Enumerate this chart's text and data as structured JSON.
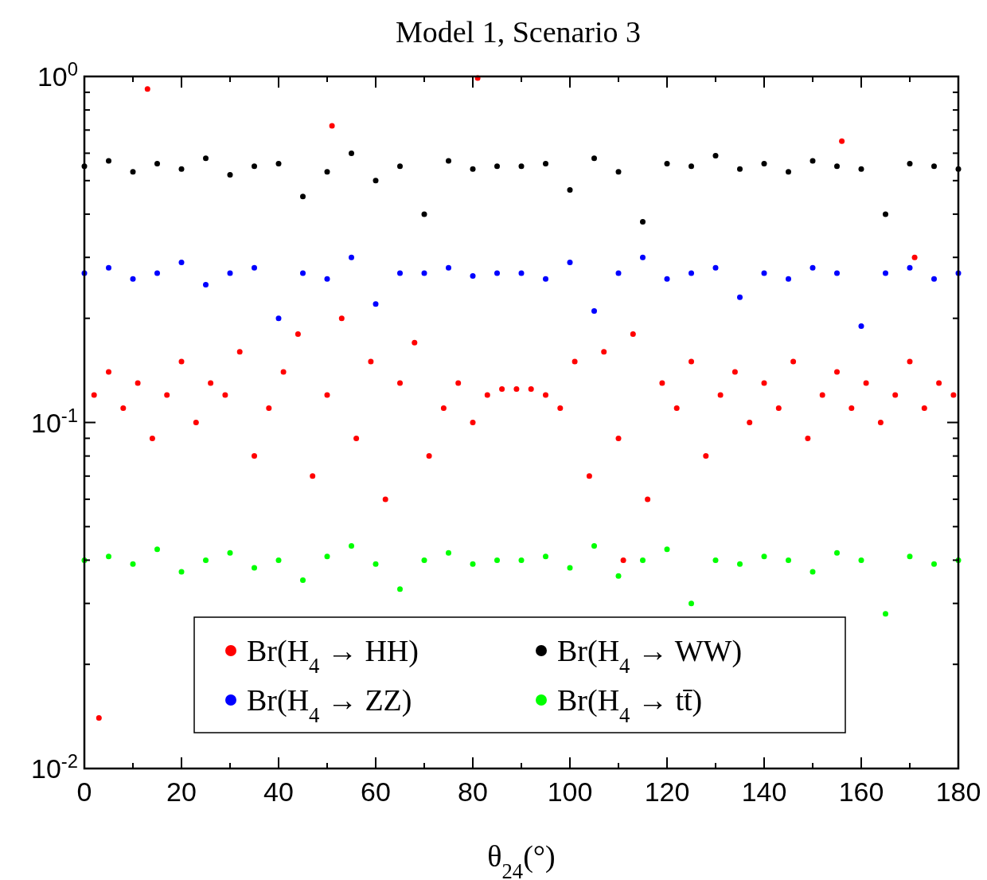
{
  "chart_data": {
    "type": "scatter",
    "title": "Model 1, Scenario 3",
    "xlabel": "θ$_{24}$(°)",
    "log": "y",
    "xlim": [
      0,
      180
    ],
    "ylim": [
      0.01,
      1
    ],
    "xticks": [
      0,
      {
        "value": 10,
        "label": null
      },
      20,
      {
        "value": 30,
        "label": null
      },
      40,
      {
        "value": 50,
        "label": null
      },
      60,
      {
        "value": 70,
        "label": null
      },
      80,
      {
        "value": 90,
        "label": null
      },
      100,
      {
        "value": 110,
        "label": null
      },
      120,
      {
        "value": 130,
        "label": null
      },
      140,
      {
        "value": 150,
        "label": null
      },
      160,
      {
        "value": 170,
        "label": null
      },
      180
    ],
    "yticks": [
      {
        "value": 0.01,
        "label": "10$^{-2}$"
      },
      {
        "value": 0.02,
        "label": null
      },
      {
        "value": 0.03,
        "label": null
      },
      {
        "value": 0.04,
        "label": null
      },
      {
        "value": 0.05,
        "label": null
      },
      {
        "value": 0.06,
        "label": null
      },
      {
        "value": 0.07,
        "label": null
      },
      {
        "value": 0.08,
        "label": null
      },
      {
        "value": 0.09,
        "label": null
      },
      {
        "value": 0.1,
        "label": "10$^{-1}$"
      },
      {
        "value": 0.2,
        "label": null
      },
      {
        "value": 0.3,
        "label": null
      },
      {
        "value": 0.4,
        "label": null
      },
      {
        "value": 0.5,
        "label": null
      },
      {
        "value": 0.6,
        "label": null
      },
      {
        "value": 0.7,
        "label": null
      },
      {
        "value": 0.8,
        "label": null
      },
      {
        "value": 0.9,
        "label": null
      },
      {
        "value": 1,
        "label": "10$^{0}$"
      }
    ],
    "marker": "circle",
    "grid": false,
    "legend": "bottom",
    "series": [
      {
        "name": "Br(H$_{4}$ → HH)",
        "color": "#ff0000",
        "x": [
          2,
          5,
          8,
          11,
          14,
          17,
          20,
          23,
          26,
          29,
          32,
          35,
          38,
          41,
          44,
          47,
          50,
          53,
          56,
          59,
          62,
          65,
          68,
          71,
          74,
          77,
          80,
          83,
          86,
          89,
          92,
          95,
          98,
          101,
          104,
          107,
          110,
          113,
          116,
          119,
          122,
          125,
          128,
          131,
          134,
          137,
          140,
          143,
          146,
          149,
          152,
          155,
          158,
          161,
          164,
          167,
          170,
          173,
          176,
          179,
          13,
          51,
          81,
          156,
          171,
          3,
          111
        ],
        "values": [
          0.12,
          0.14,
          0.11,
          0.13,
          0.09,
          0.12,
          0.15,
          0.1,
          0.13,
          0.12,
          0.16,
          0.08,
          0.11,
          0.14,
          0.18,
          0.07,
          0.12,
          0.2,
          0.09,
          0.15,
          0.06,
          0.13,
          0.17,
          0.08,
          0.11,
          0.13,
          0.1,
          0.12,
          0.125,
          0.125,
          0.125,
          0.12,
          0.11,
          0.15,
          0.07,
          0.16,
          0.09,
          0.18,
          0.06,
          0.13,
          0.11,
          0.15,
          0.08,
          0.12,
          0.14,
          0.1,
          0.13,
          0.11,
          0.15,
          0.09,
          0.12,
          0.14,
          0.11,
          0.13,
          0.1,
          0.12,
          0.15,
          0.11,
          0.13,
          0.12,
          0.92,
          0.72,
          0.99,
          0.65,
          0.3,
          0.014,
          0.04
        ]
      },
      {
        "name": "Br(H$_{4}$ → WW)",
        "color": "#000000",
        "x": [
          0,
          5,
          10,
          15,
          20,
          25,
          30,
          35,
          40,
          45,
          50,
          55,
          60,
          65,
          70,
          75,
          80,
          85,
          90,
          95,
          100,
          105,
          110,
          115,
          120,
          125,
          130,
          135,
          140,
          145,
          150,
          155,
          160,
          165,
          170,
          175,
          180
        ],
        "values": [
          0.55,
          0.57,
          0.53,
          0.56,
          0.54,
          0.58,
          0.52,
          0.55,
          0.56,
          0.45,
          0.53,
          0.6,
          0.5,
          0.55,
          0.4,
          0.57,
          0.54,
          0.55,
          0.55,
          0.56,
          0.47,
          0.58,
          0.53,
          0.38,
          0.56,
          0.55,
          0.59,
          0.54,
          0.56,
          0.53,
          0.57,
          0.55,
          0.54,
          0.4,
          0.56,
          0.55,
          0.54
        ]
      },
      {
        "name": "Br(H$_{4}$ → ZZ)",
        "color": "#0000ff",
        "x": [
          0,
          5,
          10,
          15,
          20,
          25,
          30,
          35,
          40,
          45,
          50,
          55,
          60,
          65,
          70,
          75,
          80,
          85,
          90,
          95,
          100,
          105,
          110,
          115,
          120,
          125,
          130,
          135,
          140,
          145,
          150,
          155,
          160,
          165,
          170,
          175,
          180
        ],
        "values": [
          0.27,
          0.28,
          0.26,
          0.27,
          0.29,
          0.25,
          0.27,
          0.28,
          0.2,
          0.27,
          0.26,
          0.3,
          0.22,
          0.27,
          0.27,
          0.28,
          0.265,
          0.27,
          0.27,
          0.26,
          0.29,
          0.21,
          0.27,
          0.3,
          0.26,
          0.27,
          0.28,
          0.23,
          0.27,
          0.26,
          0.28,
          0.27,
          0.19,
          0.27,
          0.28,
          0.26,
          0.27
        ]
      },
      {
        "name": "Br(H$_{4}$ → tt̄)",
        "color": "#00ff00",
        "x": [
          0,
          5,
          10,
          15,
          20,
          25,
          30,
          35,
          40,
          45,
          50,
          55,
          60,
          65,
          70,
          75,
          80,
          85,
          90,
          95,
          100,
          105,
          110,
          115,
          120,
          125,
          130,
          135,
          140,
          145,
          150,
          155,
          160,
          165,
          170,
          175,
          180
        ],
        "values": [
          0.04,
          0.041,
          0.039,
          0.043,
          0.037,
          0.04,
          0.042,
          0.038,
          0.04,
          0.035,
          0.041,
          0.044,
          0.039,
          0.033,
          0.04,
          0.042,
          0.039,
          0.04,
          0.04,
          0.041,
          0.038,
          0.044,
          0.036,
          0.04,
          0.043,
          0.03,
          0.04,
          0.039,
          0.041,
          0.04,
          0.037,
          0.042,
          0.04,
          0.028,
          0.041,
          0.039,
          0.04
        ]
      }
    ]
  }
}
